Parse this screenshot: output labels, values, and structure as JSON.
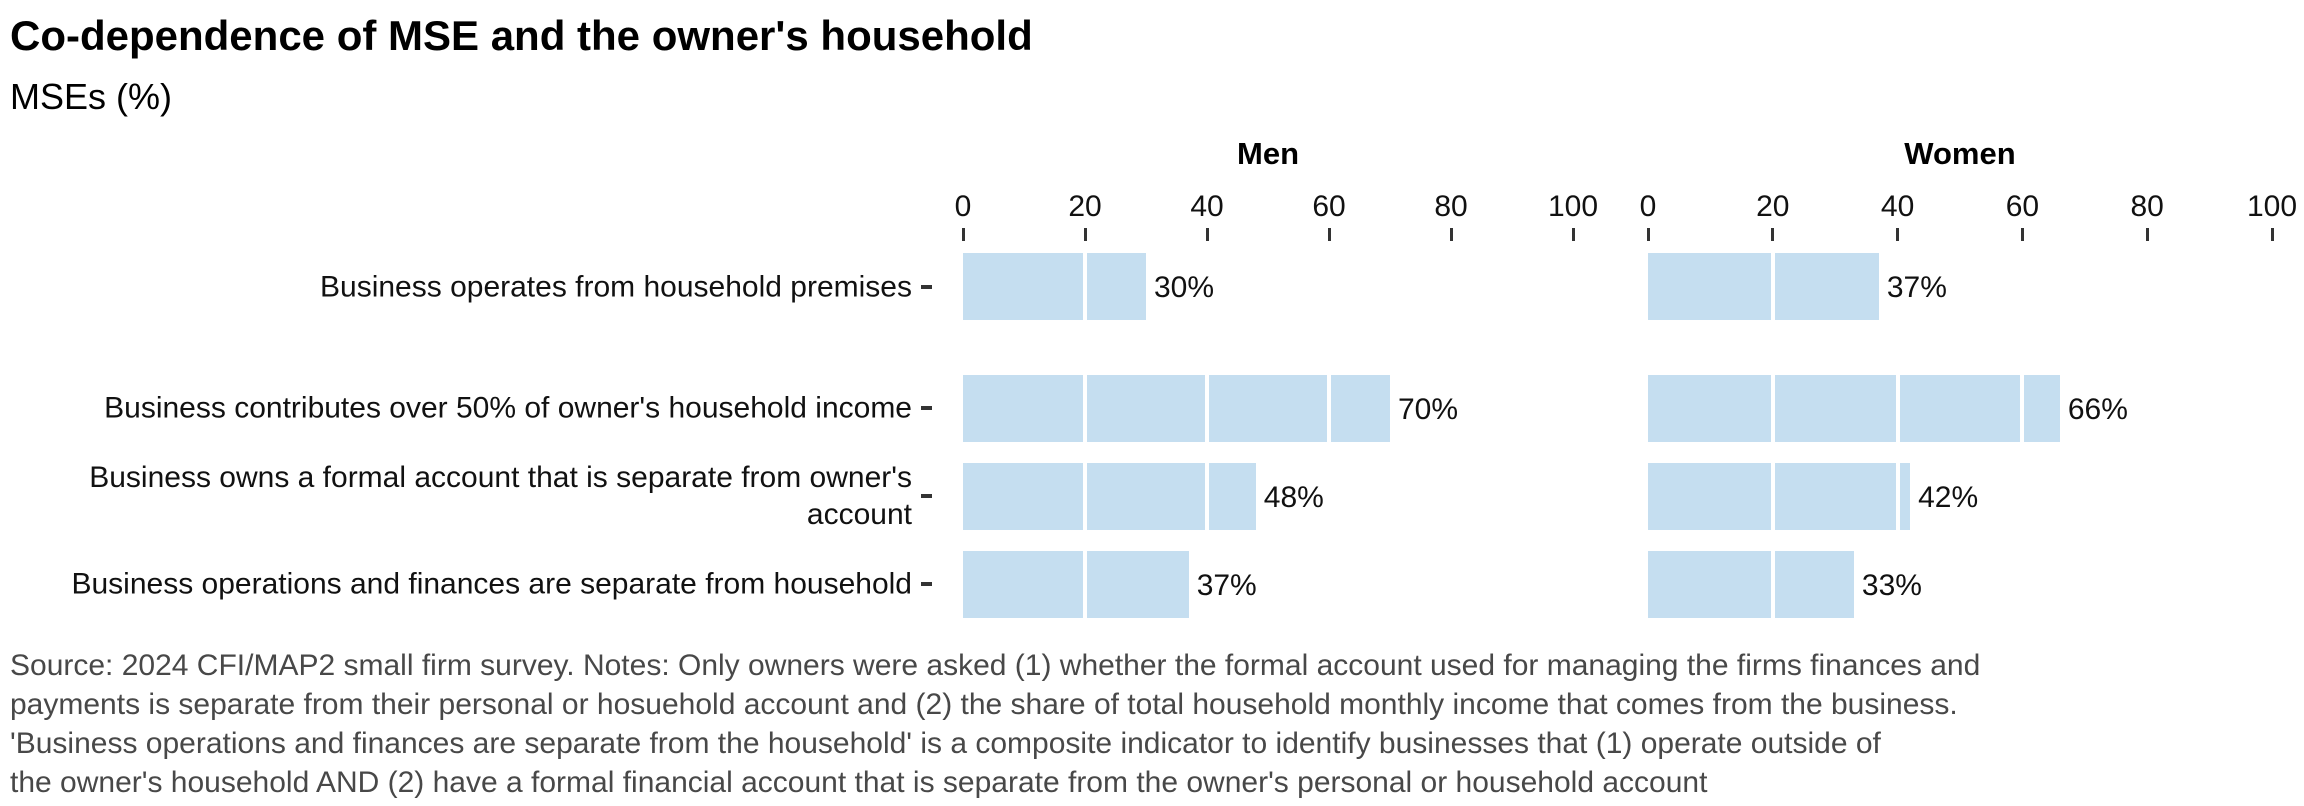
{
  "header": {
    "title": "Co-dependence of MSE and the owner's household",
    "subtitle": "MSEs (%)"
  },
  "chart_data": {
    "type": "bar",
    "orientation": "horizontal",
    "title": "Co-dependence of MSE and the owner's household",
    "subtitle": "MSEs (%)",
    "categories": [
      "Business operates from household premises",
      "Business contributes over 50% of owner's household income",
      "Business owns a formal account that is separate from owner's account",
      "Business operations and finances are separate from household"
    ],
    "series": [
      {
        "name": "Men",
        "values": [
          30,
          70,
          48,
          37
        ],
        "labels": [
          "30%",
          "70%",
          "48%",
          "37%"
        ]
      },
      {
        "name": "Women",
        "values": [
          37,
          66,
          42,
          33
        ],
        "labels": [
          "37%",
          "66%",
          "42%",
          "33%"
        ]
      }
    ],
    "panel_titles": [
      "Men",
      "Women"
    ],
    "xlim": [
      0,
      100
    ],
    "x_ticks": [
      0,
      20,
      40,
      60,
      80,
      100
    ],
    "grid": "white vertical lines every 20 units drawn over bars",
    "legend_position": "none",
    "bar_color": "#c5def0"
  },
  "caption": {
    "lines": [
      "Source: 2024 CFI/MAP2 small firm survey. Notes: Only owners were asked (1) whether the formal account used for managing the firms finances and",
      "payments is separate from their personal or hosuehold account and (2) the share of total household monthly income that comes from the business.",
      "'Business operations and finances are separate from the household' is a composite indicator to identify businesses that (1) operate outside of",
      "the owner's household AND (2) have a formal financial account that is separate from the owner's personal or household account"
    ]
  },
  "colors": {
    "bar": "#c5def0",
    "caption_text": "#484848",
    "axis_text": "#111111",
    "tick_mark": "#333333",
    "background": "#ffffff"
  }
}
